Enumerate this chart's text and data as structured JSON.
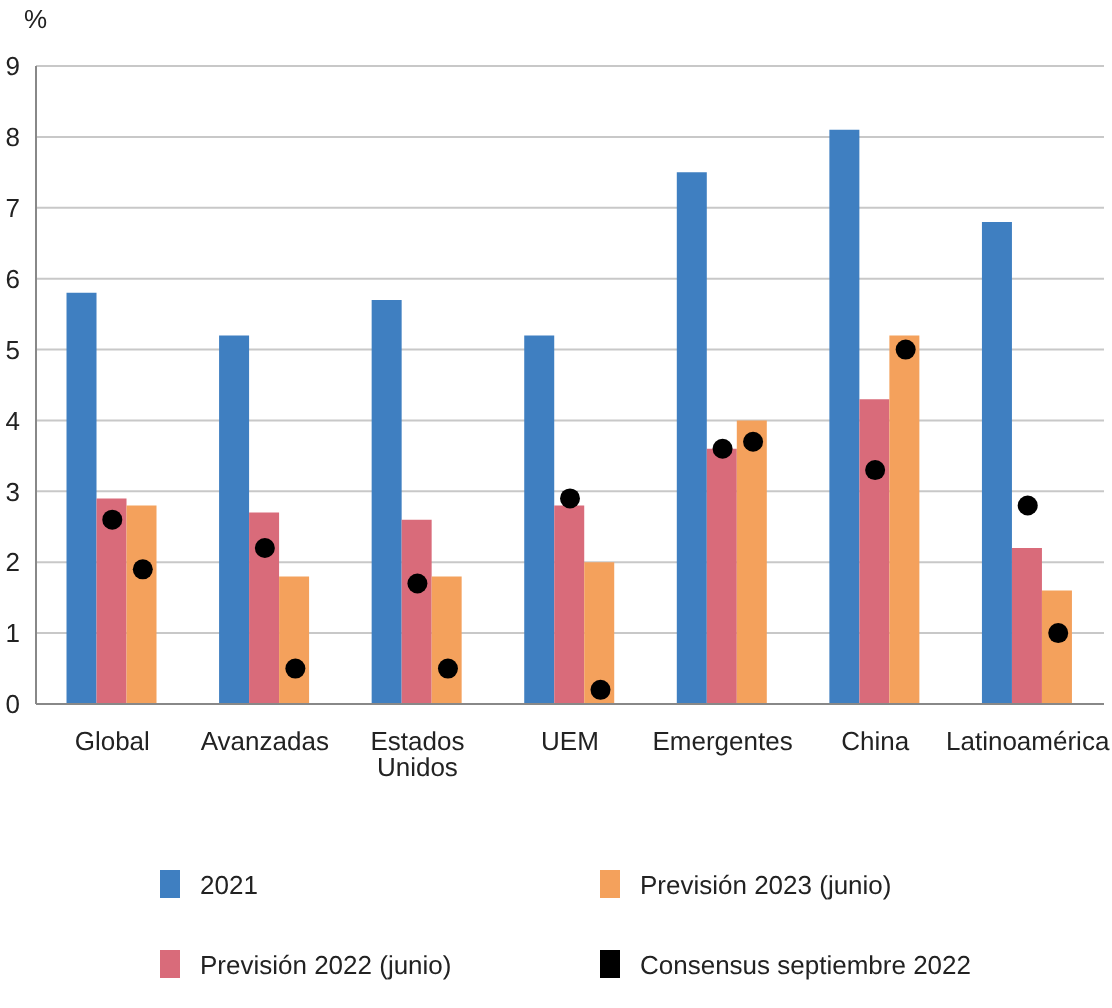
{
  "chart_data": {
    "type": "bar",
    "ylabel": "%",
    "categories": [
      "Global",
      "Avanzadas",
      "Estados Unidos",
      "UEM",
      "Emergentes",
      "China",
      "Latinoamérica"
    ],
    "series": [
      {
        "name": "2021",
        "color": "#3f7fc1",
        "values": [
          5.8,
          5.2,
          5.7,
          5.2,
          7.5,
          8.1,
          6.8
        ]
      },
      {
        "name": "Previsión 2022 (junio)",
        "color": "#d96b7a",
        "values": [
          2.9,
          2.7,
          2.6,
          2.8,
          3.6,
          4.3,
          2.2
        ]
      },
      {
        "name": "Previsión 2023 (junio)",
        "color": "#f4a15c",
        "values": [
          2.8,
          1.8,
          1.8,
          2.0,
          4.0,
          5.2,
          1.6
        ]
      },
      {
        "name": "Consensus septiembre 2022",
        "type": "scatter",
        "color": "#000000",
        "x": [
          "Global",
          "Global",
          "Avanzadas",
          "Avanzadas",
          "Estados Unidos",
          "Estados Unidos",
          "UEM",
          "UEM",
          "Emergentes",
          "Emergentes",
          "China",
          "China",
          "Latinoamérica",
          "Latinoamérica"
        ],
        "values": [
          2.6,
          1.9,
          2.2,
          0.5,
          1.7,
          0.5,
          2.9,
          0.2,
          3.6,
          3.7,
          3.3,
          5.0,
          2.8,
          1.0
        ]
      }
    ],
    "ylim": [
      0,
      9
    ],
    "yticks": [
      0,
      1,
      2,
      3,
      4,
      5,
      6,
      7,
      8,
      9
    ],
    "grid": "y",
    "legend": "bottom",
    "marker": "circle"
  }
}
